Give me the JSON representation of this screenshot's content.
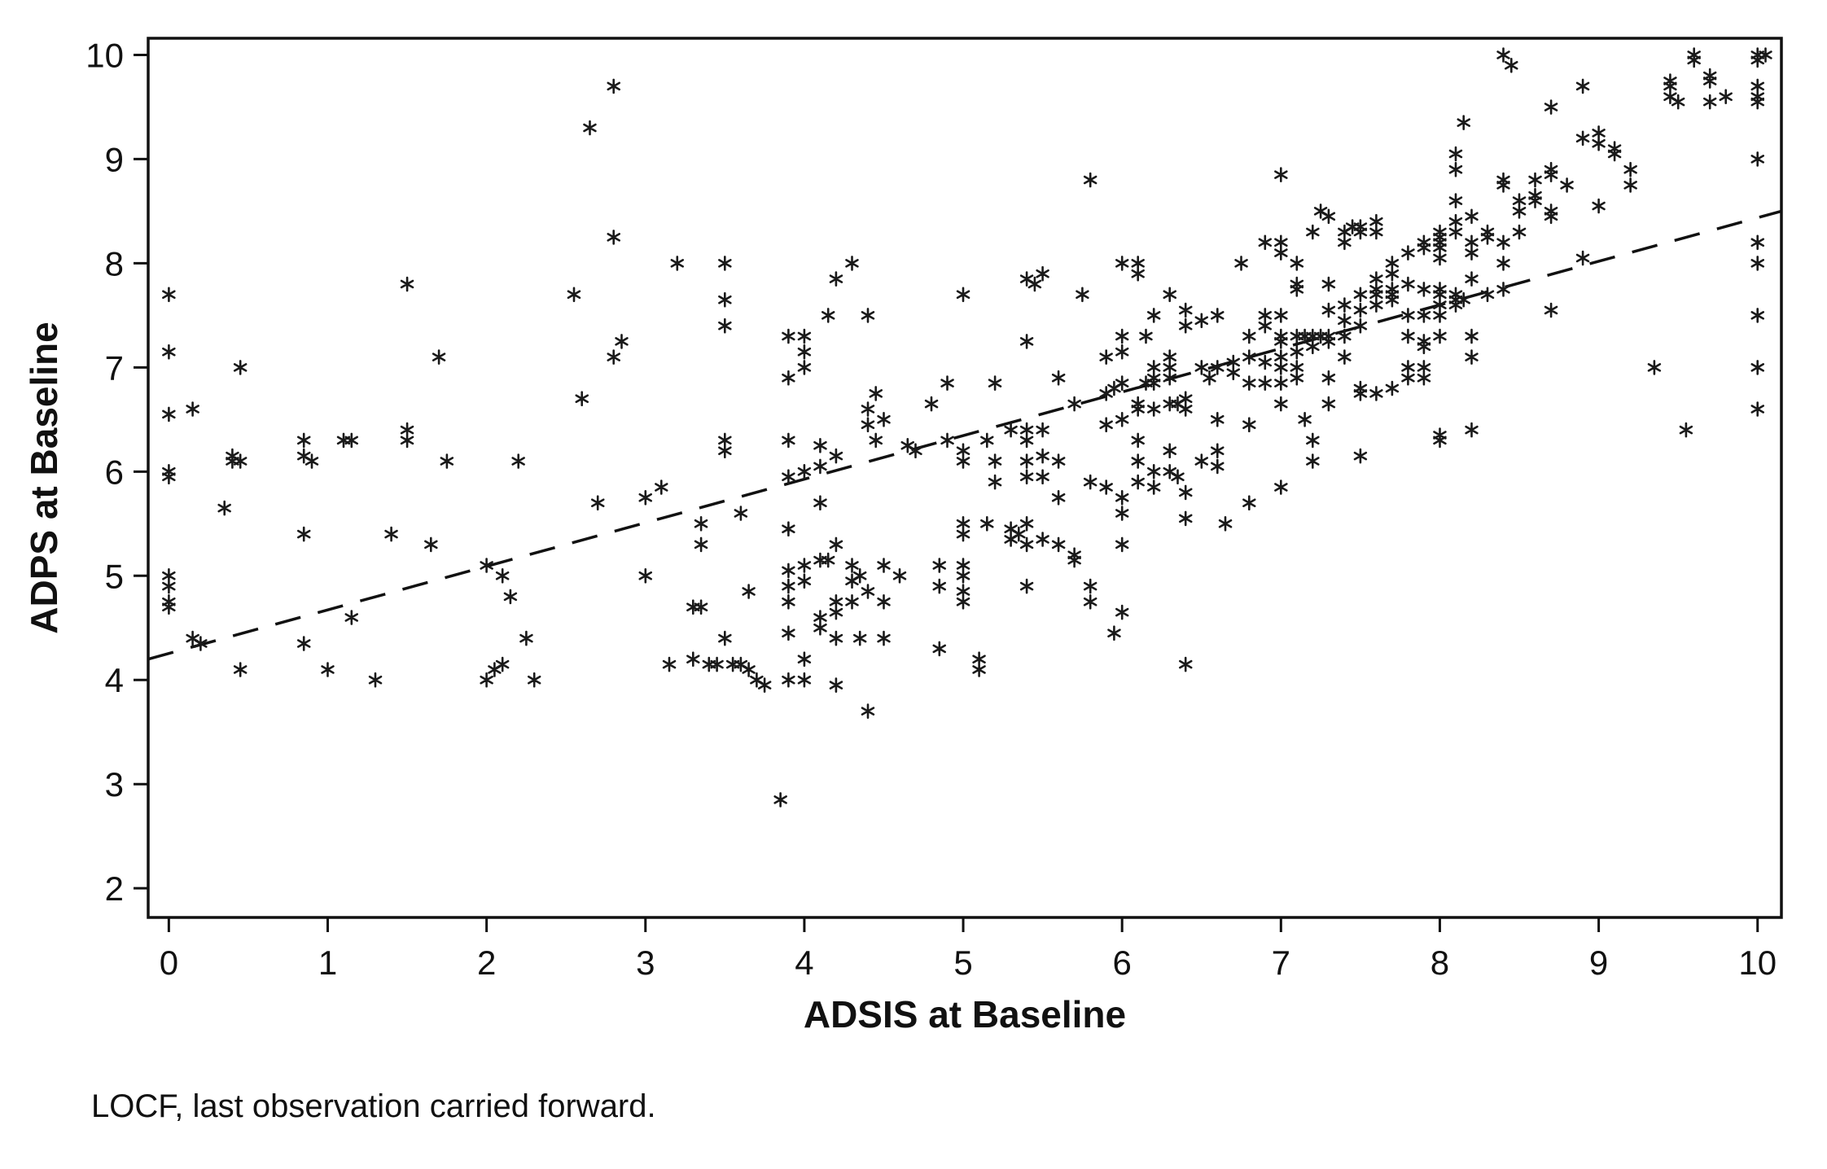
{
  "figure": {
    "footnote": "LOCF, last observation carried forward."
  },
  "chart_data": {
    "type": "scatter",
    "title": "",
    "xlabel": "ADSIS at Baseline",
    "ylabel": "ADPS at Baseline",
    "xlim": [
      -0.13,
      10.15
    ],
    "ylim": [
      1.72,
      10.16
    ],
    "x_ticks": [
      0,
      1,
      2,
      3,
      4,
      5,
      6,
      7,
      8,
      9,
      10
    ],
    "y_ticks": [
      2,
      3,
      4,
      5,
      6,
      7,
      8,
      9,
      10
    ],
    "grid": false,
    "legend": "none",
    "marker": "asterisk",
    "marker_color": "#1a1a1a",
    "trendline": {
      "style": "dashed",
      "x1": -0.13,
      "y1": 4.2,
      "x2": 10.15,
      "y2": 8.5
    },
    "points": [
      [
        0,
        7.7
      ],
      [
        0,
        7.15
      ],
      [
        0,
        6.55
      ],
      [
        0.15,
        6.6
      ],
      [
        0,
        6.0
      ],
      [
        0,
        5.95
      ],
      [
        0,
        5.0
      ],
      [
        0,
        4.9
      ],
      [
        0,
        4.75
      ],
      [
        0,
        4.7
      ],
      [
        0.15,
        4.4
      ],
      [
        0.2,
        4.35
      ],
      [
        0.35,
        5.65
      ],
      [
        0.4,
        6.15
      ],
      [
        0.45,
        7.0
      ],
      [
        0.45,
        6.1
      ],
      [
        0.4,
        6.1
      ],
      [
        0.45,
        4.1
      ],
      [
        0.85,
        6.3
      ],
      [
        0.85,
        6.15
      ],
      [
        0.9,
        6.1
      ],
      [
        0.85,
        5.4
      ],
      [
        0.85,
        4.35
      ],
      [
        1.0,
        4.1
      ],
      [
        1.1,
        6.3
      ],
      [
        1.15,
        6.3
      ],
      [
        1.15,
        4.6
      ],
      [
        1.3,
        4.0
      ],
      [
        1.4,
        5.4
      ],
      [
        1.5,
        7.8
      ],
      [
        1.5,
        6.4
      ],
      [
        1.5,
        6.3
      ],
      [
        1.65,
        5.3
      ],
      [
        1.7,
        7.1
      ],
      [
        1.75,
        6.1
      ],
      [
        2.0,
        5.1
      ],
      [
        2.0,
        4.0
      ],
      [
        2.05,
        4.1
      ],
      [
        2.1,
        5.0
      ],
      [
        2.1,
        4.15
      ],
      [
        2.15,
        4.8
      ],
      [
        2.2,
        6.1
      ],
      [
        2.25,
        4.4
      ],
      [
        2.3,
        4.0
      ],
      [
        2.55,
        7.7
      ],
      [
        2.6,
        6.7
      ],
      [
        2.65,
        9.3
      ],
      [
        2.7,
        5.7
      ],
      [
        2.8,
        9.7
      ],
      [
        2.8,
        8.25
      ],
      [
        2.8,
        7.1
      ],
      [
        2.85,
        7.25
      ],
      [
        3.0,
        5.75
      ],
      [
        3.0,
        5.0
      ],
      [
        3.1,
        5.85
      ],
      [
        3.15,
        4.15
      ],
      [
        3.2,
        8.0
      ],
      [
        3.3,
        4.7
      ],
      [
        3.35,
        4.7
      ],
      [
        3.3,
        4.2
      ],
      [
        3.35,
        5.5
      ],
      [
        3.35,
        5.3
      ],
      [
        3.4,
        4.15
      ],
      [
        3.45,
        4.15
      ],
      [
        3.5,
        8.0
      ],
      [
        3.5,
        7.65
      ],
      [
        3.5,
        7.4
      ],
      [
        3.5,
        6.3
      ],
      [
        3.5,
        6.2
      ],
      [
        3.5,
        4.4
      ],
      [
        3.55,
        4.15
      ],
      [
        3.6,
        5.6
      ],
      [
        3.6,
        4.15
      ],
      [
        3.65,
        4.85
      ],
      [
        3.65,
        4.1
      ],
      [
        3.7,
        4.0
      ],
      [
        3.75,
        3.95
      ],
      [
        3.85,
        2.85
      ],
      [
        3.9,
        7.3
      ],
      [
        3.9,
        6.9
      ],
      [
        3.9,
        6.3
      ],
      [
        3.9,
        5.95
      ],
      [
        3.9,
        5.45
      ],
      [
        3.9,
        5.05
      ],
      [
        3.9,
        4.9
      ],
      [
        3.9,
        4.75
      ],
      [
        3.9,
        4.45
      ],
      [
        3.9,
        4.0
      ],
      [
        4.0,
        7.3
      ],
      [
        4.0,
        7.15
      ],
      [
        4.0,
        7.0
      ],
      [
        4.0,
        6.0
      ],
      [
        4.0,
        5.1
      ],
      [
        4.0,
        4.95
      ],
      [
        4.0,
        4.2
      ],
      [
        4.0,
        4.0
      ],
      [
        4.1,
        6.25
      ],
      [
        4.1,
        6.05
      ],
      [
        4.1,
        5.7
      ],
      [
        4.1,
        5.15
      ],
      [
        4.15,
        5.15
      ],
      [
        4.1,
        4.6
      ],
      [
        4.1,
        4.5
      ],
      [
        4.15,
        7.5
      ],
      [
        4.2,
        7.85
      ],
      [
        4.2,
        6.15
      ],
      [
        4.2,
        5.3
      ],
      [
        4.2,
        4.75
      ],
      [
        4.2,
        4.65
      ],
      [
        4.2,
        4.4
      ],
      [
        4.2,
        3.95
      ],
      [
        4.3,
        8.0
      ],
      [
        4.3,
        5.1
      ],
      [
        4.3,
        4.95
      ],
      [
        4.3,
        4.75
      ],
      [
        4.35,
        5.0
      ],
      [
        4.35,
        4.4
      ],
      [
        4.4,
        3.7
      ],
      [
        4.4,
        7.5
      ],
      [
        4.4,
        6.6
      ],
      [
        4.4,
        6.45
      ],
      [
        4.4,
        4.85
      ],
      [
        4.45,
        6.75
      ],
      [
        4.45,
        6.3
      ],
      [
        4.5,
        6.5
      ],
      [
        4.5,
        5.1
      ],
      [
        4.5,
        4.75
      ],
      [
        4.5,
        4.4
      ],
      [
        4.6,
        5.0
      ],
      [
        4.65,
        6.25
      ],
      [
        4.7,
        6.2
      ],
      [
        4.8,
        6.65
      ],
      [
        4.85,
        5.1
      ],
      [
        4.85,
        4.9
      ],
      [
        4.85,
        4.3
      ],
      [
        4.9,
        6.85
      ],
      [
        4.9,
        6.3
      ],
      [
        5.0,
        7.7
      ],
      [
        5.0,
        6.2
      ],
      [
        5.0,
        6.1
      ],
      [
        5.0,
        5.5
      ],
      [
        5.0,
        5.4
      ],
      [
        5.0,
        5.1
      ],
      [
        5.0,
        5.0
      ],
      [
        5.0,
        4.85
      ],
      [
        5.0,
        4.75
      ],
      [
        5.1,
        4.2
      ],
      [
        5.1,
        4.1
      ],
      [
        5.15,
        6.3
      ],
      [
        5.15,
        5.5
      ],
      [
        5.2,
        6.85
      ],
      [
        5.2,
        6.1
      ],
      [
        5.2,
        5.9
      ],
      [
        5.3,
        6.4
      ],
      [
        5.3,
        5.45
      ],
      [
        5.3,
        5.35
      ],
      [
        5.35,
        5.4
      ],
      [
        5.4,
        7.85
      ],
      [
        5.4,
        7.25
      ],
      [
        5.4,
        6.4
      ],
      [
        5.4,
        6.3
      ],
      [
        5.4,
        6.1
      ],
      [
        5.4,
        5.95
      ],
      [
        5.4,
        5.5
      ],
      [
        5.4,
        5.3
      ],
      [
        5.4,
        4.9
      ],
      [
        5.45,
        7.8
      ],
      [
        5.5,
        7.9
      ],
      [
        5.5,
        6.4
      ],
      [
        5.5,
        6.15
      ],
      [
        5.5,
        5.95
      ],
      [
        5.5,
        5.35
      ],
      [
        5.6,
        6.9
      ],
      [
        5.6,
        6.1
      ],
      [
        5.6,
        5.75
      ],
      [
        5.6,
        5.3
      ],
      [
        5.7,
        6.65
      ],
      [
        5.7,
        5.2
      ],
      [
        5.7,
        5.15
      ],
      [
        5.75,
        7.7
      ],
      [
        5.8,
        8.8
      ],
      [
        5.8,
        5.9
      ],
      [
        5.8,
        4.9
      ],
      [
        5.8,
        4.75
      ],
      [
        5.9,
        7.1
      ],
      [
        5.9,
        6.75
      ],
      [
        5.9,
        6.45
      ],
      [
        5.9,
        5.85
      ],
      [
        5.95,
        6.8
      ],
      [
        5.95,
        4.45
      ],
      [
        6.0,
        8.0
      ],
      [
        6.0,
        7.3
      ],
      [
        6.0,
        7.15
      ],
      [
        6.0,
        6.85
      ],
      [
        6.0,
        6.5
      ],
      [
        6.0,
        5.75
      ],
      [
        6.0,
        5.6
      ],
      [
        6.0,
        5.3
      ],
      [
        6.0,
        4.65
      ],
      [
        6.1,
        8.0
      ],
      [
        6.1,
        7.9
      ],
      [
        6.1,
        6.65
      ],
      [
        6.1,
        6.6
      ],
      [
        6.1,
        6.3
      ],
      [
        6.1,
        6.1
      ],
      [
        6.1,
        5.9
      ],
      [
        6.15,
        7.3
      ],
      [
        6.15,
        6.85
      ],
      [
        6.2,
        7.5
      ],
      [
        6.2,
        7.0
      ],
      [
        6.2,
        6.9
      ],
      [
        6.2,
        6.85
      ],
      [
        6.2,
        6.6
      ],
      [
        6.2,
        6.0
      ],
      [
        6.2,
        5.85
      ],
      [
        6.3,
        7.7
      ],
      [
        6.3,
        7.1
      ],
      [
        6.3,
        7.0
      ],
      [
        6.3,
        6.9
      ],
      [
        6.3,
        6.65
      ],
      [
        6.3,
        6.2
      ],
      [
        6.3,
        6.0
      ],
      [
        6.35,
        6.65
      ],
      [
        6.35,
        5.95
      ],
      [
        6.4,
        7.55
      ],
      [
        6.4,
        7.4
      ],
      [
        6.4,
        6.7
      ],
      [
        6.4,
        6.6
      ],
      [
        6.4,
        5.8
      ],
      [
        6.4,
        5.55
      ],
      [
        6.4,
        4.15
      ],
      [
        6.5,
        7.45
      ],
      [
        6.5,
        7.0
      ],
      [
        6.5,
        6.1
      ],
      [
        6.55,
        6.9
      ],
      [
        6.6,
        7.5
      ],
      [
        6.6,
        7.0
      ],
      [
        6.6,
        6.5
      ],
      [
        6.6,
        6.2
      ],
      [
        6.6,
        6.05
      ],
      [
        6.65,
        5.5
      ],
      [
        6.7,
        7.05
      ],
      [
        6.7,
        6.95
      ],
      [
        6.75,
        8.0
      ],
      [
        6.8,
        7.3
      ],
      [
        6.8,
        7.1
      ],
      [
        6.8,
        6.85
      ],
      [
        6.8,
        6.45
      ],
      [
        6.8,
        5.7
      ],
      [
        6.9,
        8.2
      ],
      [
        6.9,
        7.5
      ],
      [
        6.9,
        7.4
      ],
      [
        6.9,
        7.05
      ],
      [
        6.9,
        6.85
      ],
      [
        7.0,
        8.85
      ],
      [
        7.0,
        8.2
      ],
      [
        7.0,
        8.1
      ],
      [
        7.0,
        7.5
      ],
      [
        7.0,
        7.3
      ],
      [
        7.0,
        7.25
      ],
      [
        7.0,
        7.1
      ],
      [
        7.0,
        7.0
      ],
      [
        7.0,
        6.85
      ],
      [
        7.0,
        6.65
      ],
      [
        7.0,
        5.85
      ],
      [
        7.1,
        8.0
      ],
      [
        7.1,
        7.8
      ],
      [
        7.1,
        7.75
      ],
      [
        7.1,
        7.3
      ],
      [
        7.1,
        7.15
      ],
      [
        7.1,
        7.0
      ],
      [
        7.1,
        6.9
      ],
      [
        7.15,
        7.3
      ],
      [
        7.15,
        6.5
      ],
      [
        7.2,
        8.3
      ],
      [
        7.2,
        7.3
      ],
      [
        7.2,
        7.2
      ],
      [
        7.2,
        6.3
      ],
      [
        7.2,
        6.1
      ],
      [
        7.25,
        8.5
      ],
      [
        7.25,
        7.3
      ],
      [
        7.3,
        8.45
      ],
      [
        7.3,
        7.8
      ],
      [
        7.3,
        7.55
      ],
      [
        7.3,
        7.3
      ],
      [
        7.3,
        7.25
      ],
      [
        7.3,
        6.9
      ],
      [
        7.3,
        6.65
      ],
      [
        7.4,
        8.3
      ],
      [
        7.4,
        8.2
      ],
      [
        7.4,
        7.6
      ],
      [
        7.4,
        7.45
      ],
      [
        7.4,
        7.3
      ],
      [
        7.4,
        7.1
      ],
      [
        7.45,
        8.35
      ],
      [
        7.5,
        8.35
      ],
      [
        7.5,
        8.3
      ],
      [
        7.5,
        7.7
      ],
      [
        7.5,
        7.55
      ],
      [
        7.5,
        7.4
      ],
      [
        7.5,
        6.8
      ],
      [
        7.5,
        6.75
      ],
      [
        7.5,
        6.15
      ],
      [
        7.6,
        8.4
      ],
      [
        7.6,
        8.3
      ],
      [
        7.6,
        7.85
      ],
      [
        7.6,
        7.75
      ],
      [
        7.6,
        7.7
      ],
      [
        7.6,
        7.6
      ],
      [
        7.6,
        6.75
      ],
      [
        7.7,
        8.0
      ],
      [
        7.7,
        7.9
      ],
      [
        7.7,
        7.75
      ],
      [
        7.7,
        7.7
      ],
      [
        7.7,
        7.65
      ],
      [
        7.7,
        6.8
      ],
      [
        7.8,
        8.1
      ],
      [
        7.8,
        7.8
      ],
      [
        7.8,
        7.5
      ],
      [
        7.8,
        7.3
      ],
      [
        7.8,
        7.0
      ],
      [
        7.8,
        6.9
      ],
      [
        7.9,
        8.2
      ],
      [
        7.9,
        8.15
      ],
      [
        7.9,
        7.75
      ],
      [
        7.9,
        7.5
      ],
      [
        7.9,
        7.25
      ],
      [
        7.9,
        7.2
      ],
      [
        7.9,
        7.0
      ],
      [
        7.9,
        6.9
      ],
      [
        8.0,
        8.3
      ],
      [
        8.0,
        8.25
      ],
      [
        8.0,
        8.2
      ],
      [
        8.0,
        8.15
      ],
      [
        8.0,
        8.05
      ],
      [
        8.0,
        7.75
      ],
      [
        8.0,
        7.7
      ],
      [
        8.0,
        7.6
      ],
      [
        8.0,
        7.5
      ],
      [
        8.0,
        7.3
      ],
      [
        8.0,
        6.35
      ],
      [
        8.0,
        6.3
      ],
      [
        8.1,
        9.05
      ],
      [
        8.1,
        8.9
      ],
      [
        8.1,
        8.6
      ],
      [
        8.1,
        8.4
      ],
      [
        8.1,
        8.3
      ],
      [
        8.1,
        7.7
      ],
      [
        8.1,
        7.65
      ],
      [
        8.1,
        7.6
      ],
      [
        8.15,
        9.35
      ],
      [
        8.15,
        7.65
      ],
      [
        8.2,
        8.45
      ],
      [
        8.2,
        8.2
      ],
      [
        8.2,
        8.1
      ],
      [
        8.2,
        7.85
      ],
      [
        8.2,
        7.3
      ],
      [
        8.2,
        7.1
      ],
      [
        8.2,
        6.4
      ],
      [
        8.3,
        8.3
      ],
      [
        8.3,
        8.25
      ],
      [
        8.3,
        7.7
      ],
      [
        8.4,
        10.0
      ],
      [
        8.4,
        8.8
      ],
      [
        8.4,
        8.75
      ],
      [
        8.4,
        8.2
      ],
      [
        8.4,
        8.0
      ],
      [
        8.4,
        7.75
      ],
      [
        8.45,
        9.9
      ],
      [
        8.5,
        8.6
      ],
      [
        8.5,
        8.5
      ],
      [
        8.5,
        8.3
      ],
      [
        8.6,
        8.8
      ],
      [
        8.6,
        8.65
      ],
      [
        8.6,
        8.6
      ],
      [
        8.7,
        9.5
      ],
      [
        8.7,
        8.9
      ],
      [
        8.7,
        8.85
      ],
      [
        8.7,
        8.5
      ],
      [
        8.7,
        8.45
      ],
      [
        8.7,
        7.55
      ],
      [
        8.8,
        8.75
      ],
      [
        8.9,
        9.7
      ],
      [
        8.9,
        9.2
      ],
      [
        8.9,
        8.05
      ],
      [
        9.0,
        9.25
      ],
      [
        9.0,
        9.15
      ],
      [
        9.0,
        8.55
      ],
      [
        9.1,
        9.1
      ],
      [
        9.1,
        9.05
      ],
      [
        9.2,
        8.9
      ],
      [
        9.2,
        8.75
      ],
      [
        9.35,
        7.0
      ],
      [
        9.45,
        9.75
      ],
      [
        9.45,
        9.7
      ],
      [
        9.45,
        9.6
      ],
      [
        9.5,
        9.55
      ],
      [
        9.55,
        6.4
      ],
      [
        9.6,
        10.0
      ],
      [
        9.6,
        9.95
      ],
      [
        9.7,
        9.8
      ],
      [
        9.7,
        9.75
      ],
      [
        9.7,
        9.55
      ],
      [
        9.8,
        9.6
      ],
      [
        10.0,
        10.0
      ],
      [
        10.0,
        9.95
      ],
      [
        10.0,
        9.7
      ],
      [
        10.0,
        9.6
      ],
      [
        10.0,
        9.55
      ],
      [
        10.0,
        9.0
      ],
      [
        10.0,
        8.2
      ],
      [
        10.0,
        8.0
      ],
      [
        10.0,
        7.5
      ],
      [
        10.0,
        7.0
      ],
      [
        10.0,
        6.6
      ],
      [
        10.05,
        10.0
      ]
    ]
  }
}
